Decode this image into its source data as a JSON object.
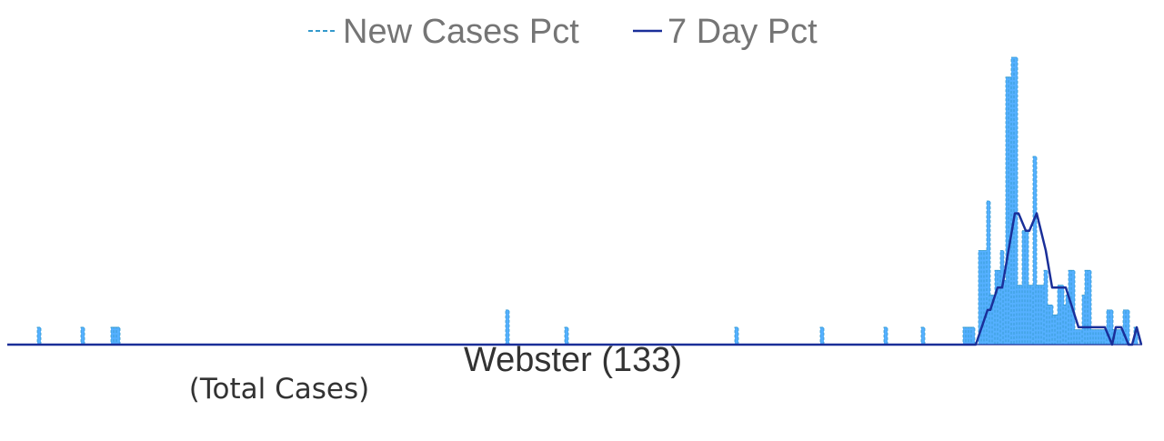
{
  "chart_data": {
    "type": "area",
    "title": "Webster (133)",
    "subtitle": "(Total Cases)",
    "legend_position": "top-center",
    "grid": false,
    "xlabel": "",
    "ylabel": "",
    "series": [
      {
        "name": "New Cases Pct",
        "style": "dashed-area",
        "color": "#3399cc",
        "fill_color": "#55b0ff",
        "spikes": [
          [
            43,
            3.5
          ],
          [
            91,
            3.5
          ],
          [
            124,
            3.5
          ],
          [
            127,
            3.5
          ],
          [
            130,
            3.5
          ],
          [
            558,
            7
          ],
          [
            623,
            3.5
          ],
          [
            810,
            3.5
          ],
          [
            904,
            3.5
          ],
          [
            974,
            3.5
          ],
          [
            1015,
            3.5
          ],
          [
            1061,
            3.5
          ],
          [
            1064,
            3.5
          ],
          [
            1067,
            3.5
          ],
          [
            1070,
            3.5
          ],
          [
            1078,
            19
          ],
          [
            1081,
            19
          ],
          [
            1084,
            19
          ],
          [
            1087,
            29
          ],
          [
            1090,
            10
          ],
          [
            1093,
            10
          ],
          [
            1096,
            15
          ],
          [
            1099,
            15
          ],
          [
            1102,
            19
          ],
          [
            1105,
            13
          ],
          [
            1108,
            54
          ],
          [
            1111,
            54
          ],
          [
            1114,
            58
          ],
          [
            1117,
            58
          ],
          [
            1120,
            12
          ],
          [
            1123,
            12
          ],
          [
            1126,
            23
          ],
          [
            1129,
            23
          ],
          [
            1132,
            12
          ],
          [
            1135,
            12
          ],
          [
            1138,
            38
          ],
          [
            1141,
            12
          ],
          [
            1144,
            12
          ],
          [
            1147,
            12
          ],
          [
            1150,
            15
          ],
          [
            1153,
            8
          ],
          [
            1156,
            8
          ],
          [
            1159,
            6
          ],
          [
            1162,
            6
          ],
          [
            1165,
            12
          ],
          [
            1168,
            12
          ],
          [
            1171,
            8
          ],
          [
            1174,
            10
          ],
          [
            1177,
            15
          ],
          [
            1180,
            15
          ],
          [
            1183,
            3
          ],
          [
            1186,
            3
          ],
          [
            1189,
            3
          ],
          [
            1192,
            10
          ],
          [
            1195,
            15
          ],
          [
            1198,
            15
          ],
          [
            1201,
            3
          ],
          [
            1204,
            3
          ],
          [
            1207,
            3
          ],
          [
            1210,
            3
          ],
          [
            1213,
            3
          ],
          [
            1216,
            3
          ],
          [
            1219,
            7
          ],
          [
            1222,
            7
          ],
          [
            1225,
            3
          ],
          [
            1228,
            3
          ],
          [
            1231,
            3
          ],
          [
            1234,
            3
          ],
          [
            1237,
            7
          ],
          [
            1240,
            7
          ],
          [
            1249,
            3.5
          ]
        ]
      },
      {
        "name": "7 Day Pct",
        "style": "solid-line",
        "color": "#1a2f99",
        "points": [
          [
            1073,
            0
          ],
          [
            1086,
            7
          ],
          [
            1089,
            7
          ],
          [
            1097,
            11.5
          ],
          [
            1102,
            11.5
          ],
          [
            1116,
            26.5
          ],
          [
            1120,
            26.5
          ],
          [
            1128,
            23
          ],
          [
            1132,
            23
          ],
          [
            1140,
            26.5
          ],
          [
            1150,
            19
          ],
          [
            1157,
            11.5
          ],
          [
            1172,
            11.5
          ],
          [
            1186,
            3.5
          ],
          [
            1215,
            3.5
          ],
          [
            1223,
            0
          ],
          [
            1227,
            3.5
          ],
          [
            1233,
            3.5
          ],
          [
            1241,
            0
          ],
          [
            1245,
            0
          ],
          [
            1250,
            3.5
          ],
          [
            1255,
            0
          ]
        ]
      }
    ],
    "xlim": [
      8,
      1256
    ],
    "ylim": [
      0,
      58
    ]
  }
}
